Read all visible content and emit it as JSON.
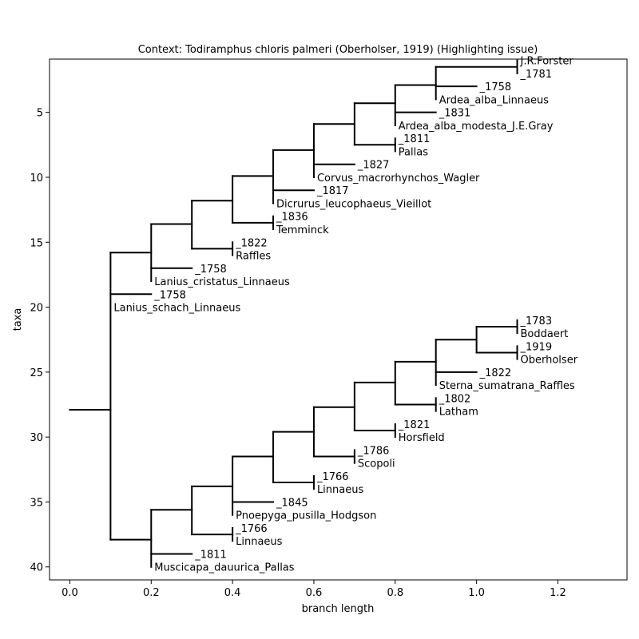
{
  "figure": {
    "title": "Context: Todiramphus chloris palmeri (Oberholser, 1919) (Highlighting issue)",
    "xlabel": "branch length",
    "ylabel": "taxa"
  },
  "chart_data": {
    "type": "tree",
    "title": "Context: Todiramphus chloris palmeri (Oberholser, 1919) (Highlighting issue)",
    "xlabel": "branch length",
    "ylabel": "taxa",
    "xlim": [
      -0.05,
      1.37
    ],
    "ylim": [
      41,
      0.9
    ],
    "xticks": [
      "0.0",
      "0.2",
      "0.4",
      "0.6",
      "0.8",
      "1.0",
      "1.2"
    ],
    "yticks": [
      "5",
      "10",
      "15",
      "20",
      "25",
      "30",
      "35",
      "40"
    ],
    "tips": [
      {
        "x": 1.1,
        "y": 1,
        "label": "J.R.Forster"
      },
      {
        "x": 1.1,
        "y": 2,
        "label": "_1781"
      },
      {
        "x": 1.0,
        "y": 3,
        "label": "_1758"
      },
      {
        "x": 0.9,
        "y": 4,
        "label": "Ardea_alba_Linnaeus"
      },
      {
        "x": 0.9,
        "y": 5,
        "label": "_1831"
      },
      {
        "x": 0.8,
        "y": 6,
        "label": "Ardea_alba_modesta_J.E.Gray"
      },
      {
        "x": 0.8,
        "y": 7,
        "label": "_1811"
      },
      {
        "x": 0.8,
        "y": 8,
        "label": "Pallas"
      },
      {
        "x": 0.7,
        "y": 9,
        "label": "_1827"
      },
      {
        "x": 0.6,
        "y": 10,
        "label": "Corvus_macrorhynchos_Wagler"
      },
      {
        "x": 0.6,
        "y": 11,
        "label": "_1817"
      },
      {
        "x": 0.5,
        "y": 12,
        "label": "Dicrurus_leucophaeus_Vieillot"
      },
      {
        "x": 0.5,
        "y": 13,
        "label": "_1836"
      },
      {
        "x": 0.5,
        "y": 14,
        "label": "Temminck"
      },
      {
        "x": 0.4,
        "y": 15,
        "label": "_1822"
      },
      {
        "x": 0.4,
        "y": 16,
        "label": "Raffles"
      },
      {
        "x": 0.3,
        "y": 17,
        "label": "_1758"
      },
      {
        "x": 0.2,
        "y": 18,
        "label": "Lanius_cristatus_Linnaeus"
      },
      {
        "x": 0.2,
        "y": 19,
        "label": "_1758"
      },
      {
        "x": 0.1,
        "y": 20,
        "label": "Lanius_schach_Linnaeus"
      },
      {
        "x": 1.1,
        "y": 21,
        "label": "_1783"
      },
      {
        "x": 1.1,
        "y": 22,
        "label": "Boddaert"
      },
      {
        "x": 1.1,
        "y": 23,
        "label": "_1919"
      },
      {
        "x": 1.1,
        "y": 24,
        "label": "Oberholser"
      },
      {
        "x": 1.0,
        "y": 25,
        "label": "_1822"
      },
      {
        "x": 0.9,
        "y": 26,
        "label": "Sterna_sumatrana_Raffles"
      },
      {
        "x": 0.9,
        "y": 27,
        "label": "_1802"
      },
      {
        "x": 0.9,
        "y": 28,
        "label": "Latham"
      },
      {
        "x": 0.8,
        "y": 29,
        "label": "_1821"
      },
      {
        "x": 0.8,
        "y": 30,
        "label": "Horsfield"
      },
      {
        "x": 0.7,
        "y": 31,
        "label": "_1786"
      },
      {
        "x": 0.7,
        "y": 32,
        "label": "Scopoli"
      },
      {
        "x": 0.6,
        "y": 33,
        "label": "_1766"
      },
      {
        "x": 0.6,
        "y": 34,
        "label": "Linnaeus"
      },
      {
        "x": 0.5,
        "y": 35,
        "label": "_1845"
      },
      {
        "x": 0.4,
        "y": 36,
        "label": "Pnoepyga_pusilla_Hodgson"
      },
      {
        "x": 0.4,
        "y": 37,
        "label": "_1766"
      },
      {
        "x": 0.4,
        "y": 38,
        "label": "Linnaeus"
      },
      {
        "x": 0.3,
        "y": 39,
        "label": "_1811"
      },
      {
        "x": 0.2,
        "y": 40,
        "label": "Muscicapa_dauurica_Pallas"
      }
    ],
    "edges": [
      [
        0.0,
        27.9,
        0.1,
        27.9
      ],
      [
        0.1,
        15.8,
        0.1,
        37.9
      ],
      [
        0.1,
        15.8,
        0.2,
        15.8
      ],
      [
        0.1,
        37.9,
        0.2,
        37.9
      ],
      [
        0.2,
        13.6,
        0.2,
        18
      ],
      [
        0.2,
        13.6,
        0.3,
        13.6
      ],
      [
        0.2,
        17,
        0.3,
        17
      ],
      [
        0.1,
        19,
        0.2,
        19
      ],
      [
        0.3,
        11.8,
        0.3,
        15.5
      ],
      [
        0.3,
        11.8,
        0.4,
        11.8
      ],
      [
        0.3,
        15.5,
        0.4,
        15.5
      ],
      [
        0.4,
        15,
        0.4,
        16
      ],
      [
        0.4,
        9.9,
        0.4,
        13.5
      ],
      [
        0.4,
        9.9,
        0.5,
        9.9
      ],
      [
        0.4,
        13.5,
        0.5,
        13.5
      ],
      [
        0.5,
        13,
        0.5,
        14
      ],
      [
        0.5,
        7.9,
        0.5,
        12
      ],
      [
        0.5,
        7.9,
        0.6,
        7.9
      ],
      [
        0.5,
        11,
        0.6,
        11
      ],
      [
        0.6,
        5.9,
        0.6,
        10
      ],
      [
        0.6,
        5.9,
        0.7,
        5.9
      ],
      [
        0.6,
        9,
        0.7,
        9
      ],
      [
        0.7,
        4.3,
        0.7,
        7.5
      ],
      [
        0.7,
        4.3,
        0.8,
        4.3
      ],
      [
        0.7,
        7.5,
        0.8,
        7.5
      ],
      [
        0.8,
        7,
        0.8,
        8
      ],
      [
        0.8,
        2.9,
        0.8,
        6
      ],
      [
        0.8,
        2.9,
        0.9,
        2.9
      ],
      [
        0.8,
        5,
        0.9,
        5
      ],
      [
        0.9,
        1.5,
        0.9,
        4
      ],
      [
        0.9,
        1.5,
        1.1,
        1.5
      ],
      [
        0.9,
        3,
        1.0,
        3
      ],
      [
        1.1,
        1,
        1.1,
        2
      ],
      [
        0.2,
        35.6,
        0.2,
        40
      ],
      [
        0.2,
        35.6,
        0.3,
        35.6
      ],
      [
        0.2,
        39,
        0.3,
        39
      ],
      [
        0.3,
        33.8,
        0.3,
        37.5
      ],
      [
        0.3,
        33.8,
        0.4,
        33.8
      ],
      [
        0.3,
        37.5,
        0.4,
        37.5
      ],
      [
        0.4,
        37,
        0.4,
        38
      ],
      [
        0.4,
        31.5,
        0.4,
        36
      ],
      [
        0.4,
        31.5,
        0.5,
        31.5
      ],
      [
        0.4,
        35,
        0.5,
        35
      ],
      [
        0.5,
        29.6,
        0.5,
        33.5
      ],
      [
        0.5,
        29.6,
        0.6,
        29.6
      ],
      [
        0.5,
        33.5,
        0.6,
        33.5
      ],
      [
        0.6,
        33,
        0.6,
        34
      ],
      [
        0.6,
        27.7,
        0.6,
        31.5
      ],
      [
        0.6,
        27.7,
        0.7,
        27.7
      ],
      [
        0.6,
        31.5,
        0.7,
        31.5
      ],
      [
        0.7,
        31,
        0.7,
        32
      ],
      [
        0.7,
        25.8,
        0.7,
        29.5
      ],
      [
        0.7,
        25.8,
        0.8,
        25.8
      ],
      [
        0.7,
        29.5,
        0.8,
        29.5
      ],
      [
        0.8,
        29,
        0.8,
        30
      ],
      [
        0.8,
        24.2,
        0.8,
        27.5
      ],
      [
        0.8,
        24.2,
        0.9,
        24.2
      ],
      [
        0.8,
        27.5,
        0.9,
        27.5
      ],
      [
        0.9,
        27,
        0.9,
        28
      ],
      [
        0.9,
        22.5,
        0.9,
        26
      ],
      [
        0.9,
        22.5,
        1.0,
        22.5
      ],
      [
        0.9,
        25,
        1.0,
        25
      ],
      [
        1.0,
        21.5,
        1.0,
        23.5
      ],
      [
        1.0,
        21.5,
        1.1,
        21.5
      ],
      [
        1.0,
        23.5,
        1.1,
        23.5
      ],
      [
        1.1,
        21,
        1.1,
        22
      ],
      [
        1.1,
        23,
        1.1,
        24
      ]
    ]
  }
}
